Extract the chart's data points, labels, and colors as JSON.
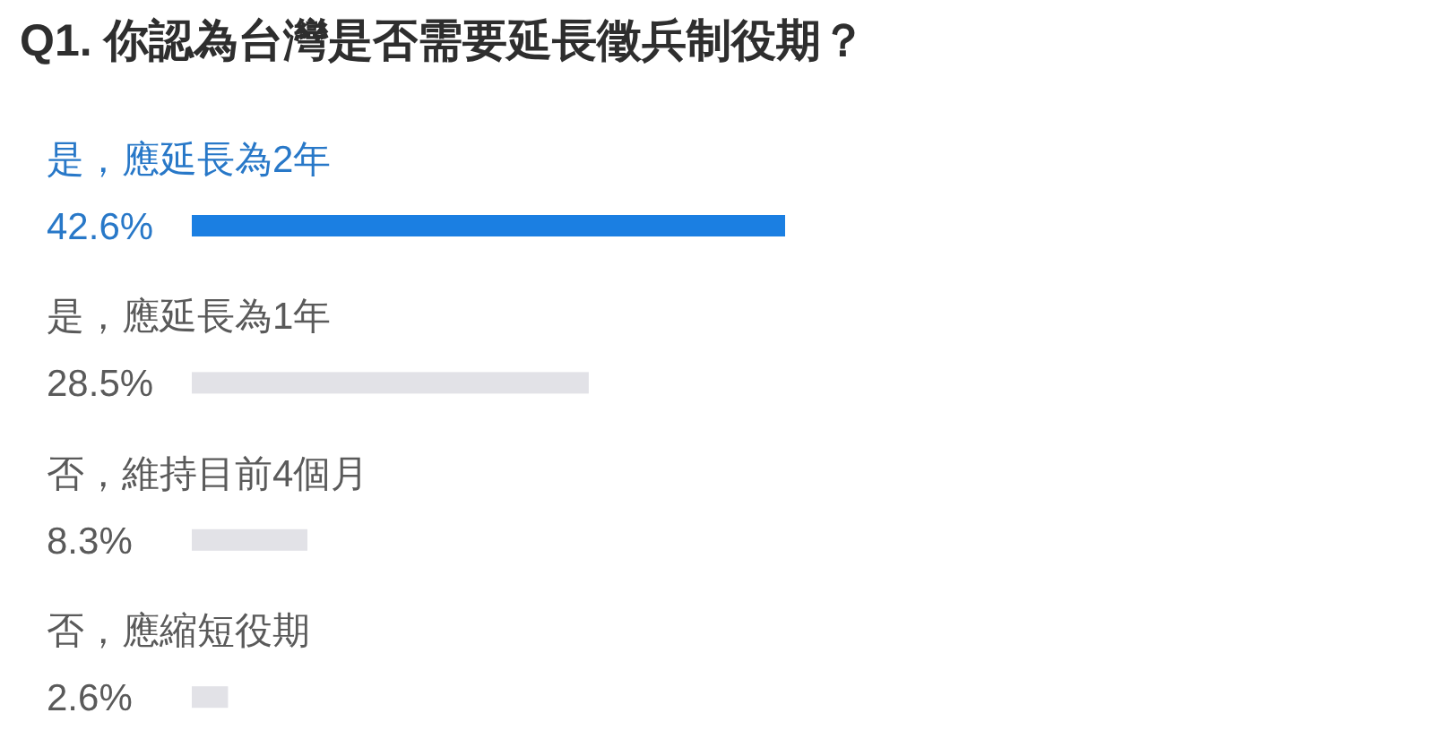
{
  "chart_data": {
    "type": "bar",
    "orientation": "horizontal",
    "title": "Q1. 你認為台灣是否需要延長徵兵制役期？",
    "categories": [
      "是，應延長為2年",
      "是，應延長為1年",
      "否，維持目前4個月",
      "否，應縮短役期"
    ],
    "values": [
      42.6,
      28.5,
      8.3,
      2.6
    ],
    "value_labels": [
      "42.6%",
      "28.5%",
      "8.3%",
      "2.6%"
    ],
    "colors": [
      "#1b7fe2",
      "#e2e2e7",
      "#e2e2e7",
      "#e2e2e7"
    ]
  }
}
